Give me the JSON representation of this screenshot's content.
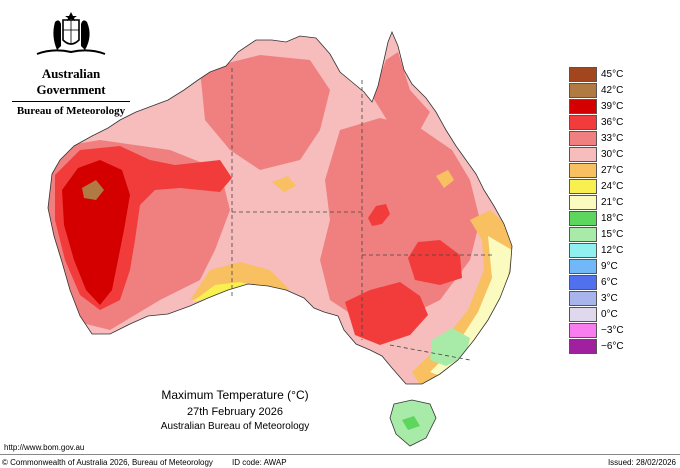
{
  "header": {
    "government": "Australian Government",
    "bureau": "Bureau of Meteorology"
  },
  "legend": {
    "items": [
      {
        "label": "45°C",
        "color": "#a2461d"
      },
      {
        "label": "42°C",
        "color": "#b07a42"
      },
      {
        "label": "39°C",
        "color": "#d40000"
      },
      {
        "label": "36°C",
        "color": "#f23c3c"
      },
      {
        "label": "33°C",
        "color": "#f08080"
      },
      {
        "label": "30°C",
        "color": "#f7bcbc"
      },
      {
        "label": "27°C",
        "color": "#f8c060"
      },
      {
        "label": "24°C",
        "color": "#f8f050"
      },
      {
        "label": "21°C",
        "color": "#fbfbc0"
      },
      {
        "label": "18°C",
        "color": "#5ed65e"
      },
      {
        "label": "15°C",
        "color": "#a8eaa8"
      },
      {
        "label": "12°C",
        "color": "#90f0f0"
      },
      {
        "label": "9°C",
        "color": "#70b8f8"
      },
      {
        "label": "6°C",
        "color": "#5070ee"
      },
      {
        "label": "3°C",
        "color": "#a8b4ec"
      },
      {
        "label": "0°C",
        "color": "#e0d8ec"
      },
      {
        "label": "−3°C",
        "color": "#f87ef0"
      },
      {
        "label": "−6°C",
        "color": "#a020a0"
      }
    ]
  },
  "caption": {
    "title": "Maximum Temperature (°C)",
    "date": "27th February 2026",
    "organisation": "Australian Bureau of Meteorology"
  },
  "footer": {
    "url": "http://www.bom.gov.au",
    "copyright": "© Commonwealth of Australia 2026, Bureau of Meteorology",
    "id_code": "ID code: AWAP",
    "issued": "Issued: 28/02/2026"
  },
  "map_colors": {
    "band_30": "#f7bcbc",
    "band_33": "#f08080",
    "band_36": "#f23c3c",
    "band_39": "#d40000",
    "band_42": "#b07a42",
    "band_27": "#f8c060",
    "band_24": "#f8f050",
    "band_21": "#fbfbc0",
    "band_18": "#5ed65e",
    "band_15": "#a8eaa8"
  }
}
